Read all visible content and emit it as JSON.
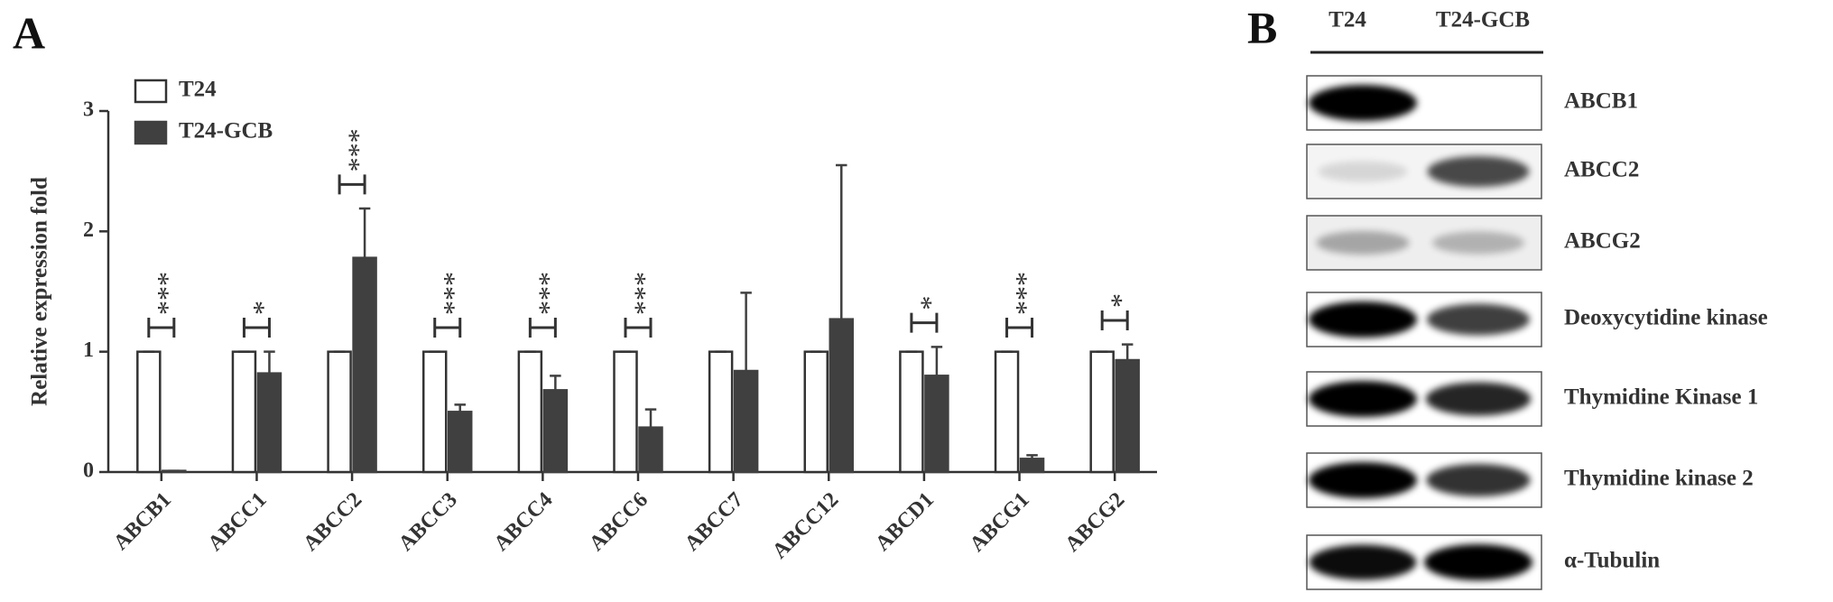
{
  "panel_labels": [
    "A",
    "B"
  ],
  "chart_data": {
    "type": "bar",
    "y_label": "Relative expression fold",
    "categories": [
      "ABCB1",
      "ABCC1",
      "ABCC2",
      "ABCC3",
      "ABCC4",
      "ABCC6",
      "ABCC7",
      "ABCC12",
      "ABCD1",
      "ABCG1",
      "ABCG2"
    ],
    "series": [
      {
        "name": "T24",
        "color": "#ffffff",
        "edgecolor": "#333333",
        "values": [
          1,
          1,
          1,
          1,
          1,
          1,
          1,
          1,
          1,
          1,
          1
        ],
        "errors": [
          0,
          0,
          0,
          0,
          0,
          0,
          0,
          0,
          0,
          0,
          0
        ]
      },
      {
        "name": "T24-GCB",
        "color": "#404040",
        "edgecolor": "#404040",
        "values": [
          0.01,
          0.82,
          1.78,
          0.5,
          0.68,
          0.37,
          0.84,
          1.27,
          0.8,
          0.11,
          0.93
        ],
        "errors": [
          0,
          0.18,
          0.41,
          0.06,
          0.12,
          0.15,
          0.65,
          1.28,
          0.24,
          0.03,
          0.13
        ]
      }
    ],
    "significance": [
      "***",
      "*",
      "***",
      "***",
      "***",
      "***",
      null,
      null,
      "*",
      "***",
      "*"
    ],
    "ylim": [
      0,
      3
    ],
    "yticks": [
      0,
      1,
      2,
      3
    ],
    "legend": "upper left"
  },
  "blot": {
    "columns": [
      "T24",
      "T24-GCB"
    ],
    "rows": [
      "ABCB1",
      "ABCC2",
      "ABCG2",
      "Deoxycytidine kinase",
      "Thymidine Kinase 1",
      "Thymidine kinase 2",
      "α-Tubulin"
    ]
  }
}
